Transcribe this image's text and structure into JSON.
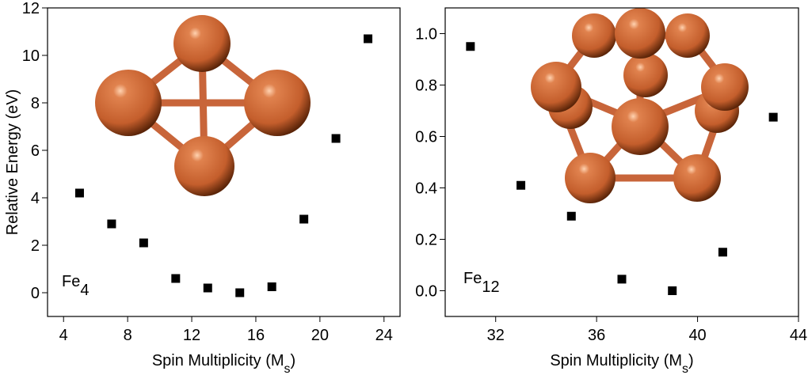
{
  "chart_data": [
    {
      "type": "scatter",
      "ylabel": "Relative Energy (eV)",
      "xlabel": [
        "Spin Multiplicity (M",
        "s",
        ")"
      ],
      "annotation": [
        "Fe",
        "4"
      ],
      "x": [
        5,
        7,
        9,
        11,
        13,
        15,
        17,
        19,
        21,
        23
      ],
      "values": [
        4.2,
        2.9,
        2.1,
        0.6,
        0.2,
        0,
        0.25,
        3.1,
        6.5,
        10.7
      ],
      "color": "#000000",
      "xlim": [
        3,
        25
      ],
      "ylim": [
        -1,
        12
      ],
      "xticks": [
        4,
        8,
        12,
        16,
        20,
        24
      ],
      "yticks": [
        0,
        2,
        4,
        6,
        8,
        10,
        12
      ],
      "grid": false
    },
    {
      "type": "scatter",
      "xlabel": [
        "Spin Multiplicity (M",
        "s",
        ")"
      ],
      "annotation": [
        "Fe",
        "12"
      ],
      "x": [
        31,
        33,
        35,
        37,
        39,
        41,
        43
      ],
      "values": [
        0.95,
        0.41,
        0.29,
        0.045,
        0,
        0.15,
        0.675
      ],
      "color": "#000000",
      "xlim": [
        30,
        44
      ],
      "ylim": [
        -0.1,
        1.1
      ],
      "xticks": [
        32,
        36,
        40,
        44
      ],
      "yticks": [
        {
          "value": 0,
          "label": "0.0"
        },
        0.2,
        0.4,
        0.6,
        0.8,
        {
          "value": 1,
          "label": "1.0"
        }
      ],
      "grid": false
    }
  ]
}
